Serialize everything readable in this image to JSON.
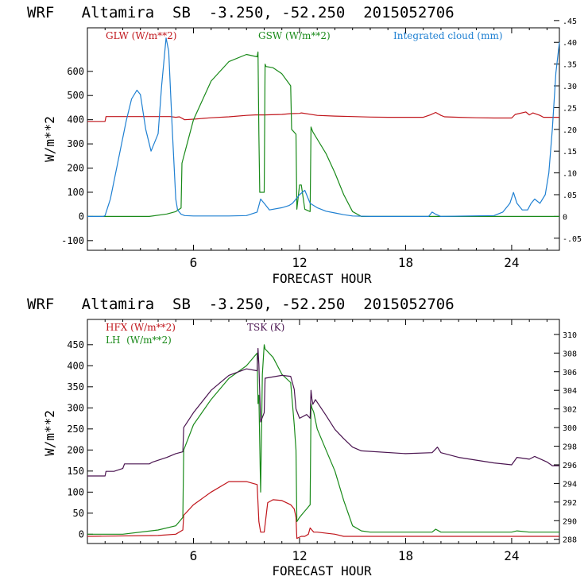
{
  "chart_data": [
    {
      "type": "line",
      "title": "WRF   Altamira  SB  -3.250, -52.250  2015052706",
      "xlabel": "FORECAST HOUR",
      "ylabel": "W/m**2",
      "xlim": [
        0,
        26.7
      ],
      "ylim": [
        -140,
        780
      ],
      "y2lim": [
        -0.0778,
        0.4333
      ],
      "x_ticks": [
        6,
        12,
        18,
        24
      ],
      "y_ticks": [
        -100,
        0,
        100,
        200,
        300,
        400,
        500,
        600
      ],
      "y2_ticks": [
        -0.05,
        0,
        0.05,
        0.1,
        0.15,
        0.2,
        0.25,
        0.3,
        0.35,
        0.4,
        0.45
      ],
      "y2_tick_labels": [
        "-.05",
        "0",
        ".05",
        ".10",
        ".15",
        ".20",
        ".25",
        ".30",
        ".35",
        ".40",
        ".45"
      ],
      "series": [
        {
          "name": "GLW (W/m**2)",
          "color": "#c0161c",
          "axis": "left",
          "x": [
            0,
            1.0,
            1.05,
            2,
            3,
            4,
            4.7,
            5,
            5.2,
            5.5,
            6,
            7,
            8,
            9,
            9.5,
            10,
            11,
            11.5,
            12,
            12.1,
            13,
            14,
            15,
            16,
            17,
            18,
            19,
            19.4,
            19.7,
            20,
            20.2,
            21,
            22,
            23,
            24,
            24.2,
            24.8,
            25,
            25.2,
            25.6,
            25.8,
            26.7
          ],
          "values": [
            393,
            393,
            413,
            413,
            413,
            413,
            413,
            410,
            412,
            400,
            402,
            408,
            412,
            418,
            420,
            420,
            422,
            425,
            426,
            428,
            418,
            415,
            413,
            411,
            410,
            410,
            410,
            420,
            430,
            418,
            412,
            410,
            408,
            407,
            407,
            422,
            432,
            420,
            428,
            418,
            410,
            410
          ]
        },
        {
          "name": "GSW (W/m**2)",
          "color": "#1a8a1a",
          "axis": "left",
          "x": [
            0,
            3.5,
            4.5,
            5.0,
            5.3,
            5.35,
            6,
            7,
            8,
            9,
            9.6,
            9.65,
            9.7,
            9.75,
            10,
            10.05,
            10.1,
            10.5,
            11,
            11.5,
            11.55,
            11.8,
            11.85,
            12,
            12.1,
            12.3,
            12.6,
            12.65,
            12.7,
            12.75,
            13,
            13.5,
            14,
            14.5,
            15,
            15.5,
            16,
            18,
            26.7
          ],
          "values": [
            0,
            0,
            10,
            20,
            35,
            220,
            400,
            560,
            640,
            670,
            660,
            680,
            340,
            100,
            100,
            630,
            620,
            615,
            590,
            540,
            360,
            340,
            30,
            130,
            130,
            30,
            20,
            370,
            360,
            350,
            320,
            260,
            180,
            90,
            20,
            0,
            0,
            0,
            0
          ]
        },
        {
          "name": "Integrated cloud (mm)",
          "color": "#1f80d2",
          "axis": "right",
          "x": [
            0,
            0.9,
            1.0,
            1.3,
            1.7,
            2.2,
            2.5,
            2.8,
            3.0,
            3.3,
            3.6,
            4.0,
            4.2,
            4.45,
            4.6,
            4.8,
            5.0,
            5.1,
            5.3,
            5.5,
            6,
            7,
            8,
            9,
            9.6,
            9.8,
            10.0,
            10.3,
            11.0,
            11.4,
            11.6,
            11.8,
            12.0,
            12.3,
            12.6,
            13.0,
            13.5,
            14.0,
            14.5,
            15,
            16,
            19.3,
            19.5,
            19.7,
            20.0,
            23.0,
            23.5,
            23.9,
            24.1,
            24.3,
            24.6,
            24.9,
            25.1,
            25.3,
            25.6,
            25.9,
            26.1,
            26.3,
            26.5,
            26.7
          ],
          "values": [
            0,
            0,
            0.002,
            0.04,
            0.12,
            0.22,
            0.27,
            0.29,
            0.28,
            0.2,
            0.15,
            0.19,
            0.3,
            0.41,
            0.38,
            0.2,
            0.04,
            0.015,
            0.005,
            0.002,
            0.001,
            0.001,
            0.001,
            0.002,
            0.01,
            0.04,
            0.03,
            0.015,
            0.02,
            0.025,
            0.03,
            0.04,
            0.05,
            0.06,
            0.03,
            0.02,
            0.012,
            0.008,
            0.004,
            0.001,
            0,
            0,
            0.01,
            0.005,
            0,
            0.002,
            0.01,
            0.03,
            0.055,
            0.03,
            0.015,
            0.015,
            0.03,
            0.04,
            0.03,
            0.05,
            0.1,
            0.2,
            0.33,
            0.4
          ]
        }
      ]
    },
    {
      "type": "line",
      "title": "WRF   Altamira  SB  -3.250, -52.250  2015052706",
      "xlabel": "FORECAST HOUR",
      "ylabel": "W/m**2",
      "xlim": [
        0,
        26.7
      ],
      "ylim": [
        -22,
        510
      ],
      "y2lim": [
        287.55,
        311.61
      ],
      "x_ticks": [
        6,
        12,
        18,
        24
      ],
      "y_ticks": [
        0,
        50,
        100,
        150,
        200,
        250,
        300,
        350,
        400,
        450
      ],
      "y2_ticks": [
        288,
        290,
        292,
        294,
        296,
        298,
        300,
        302,
        304,
        306,
        308,
        310
      ],
      "series": [
        {
          "name": "HFX (W/m**2)",
          "color": "#c0161c",
          "axis": "left",
          "x": [
            0,
            4.0,
            5.0,
            5.4,
            5.45,
            6,
            7,
            8,
            9,
            9.6,
            9.7,
            9.8,
            10.0,
            10.2,
            10.5,
            11,
            11.5,
            11.7,
            11.8,
            11.85,
            12.1,
            12.3,
            12.5,
            12.6,
            12.7,
            12.8,
            13,
            14,
            14.5,
            15,
            16,
            18,
            26.7
          ],
          "values": [
            -5,
            -3,
            0,
            10,
            45,
            70,
            100,
            125,
            125,
            118,
            30,
            5,
            5,
            75,
            82,
            80,
            70,
            60,
            40,
            -10,
            -5,
            -5,
            0,
            15,
            10,
            5,
            5,
            0,
            -5,
            -5,
            -5,
            -5,
            -5
          ]
        },
        {
          "name": "LH (W/m**2)",
          "color": "#1a8a1a",
          "axis": "left",
          "x": [
            0,
            2,
            4,
            5.0,
            5.4,
            5.45,
            6,
            7,
            8,
            9,
            9.6,
            9.65,
            9.7,
            9.8,
            9.9,
            10.0,
            10.05,
            10.5,
            11,
            11.5,
            11.7,
            11.8,
            11.85,
            12.0,
            12.2,
            12.4,
            12.6,
            12.65,
            12.7,
            12.8,
            13,
            13.5,
            14,
            14.5,
            15,
            15.5,
            16,
            19.5,
            19.7,
            20,
            24,
            24.3,
            25,
            26.7
          ],
          "values": [
            0,
            0,
            10,
            20,
            40,
            200,
            260,
            320,
            370,
            400,
            430,
            310,
            330,
            100,
            380,
            450,
            440,
            420,
            380,
            360,
            260,
            200,
            30,
            40,
            50,
            60,
            70,
            310,
            300,
            290,
            250,
            200,
            150,
            80,
            20,
            8,
            5,
            5,
            12,
            5,
            5,
            8,
            5,
            5
          ]
        },
        {
          "name": "TSK (K)",
          "color": "#4a1450",
          "axis": "right",
          "x": [
            0,
            1.0,
            1.05,
            1.5,
            2.0,
            2.1,
            3.5,
            3.7,
            4.5,
            5.0,
            5.4,
            5.45,
            6,
            7,
            8,
            9,
            9.6,
            9.65,
            9.7,
            9.8,
            10.0,
            10.05,
            11,
            11.5,
            11.7,
            11.8,
            12.0,
            12.4,
            12.6,
            12.65,
            12.7,
            12.75,
            12.9,
            13.5,
            14,
            14.5,
            15,
            15.5,
            18,
            19.5,
            19.8,
            20.0,
            21,
            22,
            23,
            24,
            24.3,
            25,
            25.3,
            26,
            26.3,
            26.7
          ],
          "values": [
            294.8,
            294.8,
            295.3,
            295.3,
            295.6,
            296.1,
            296.1,
            296.3,
            296.8,
            297.2,
            297.4,
            300.0,
            301.6,
            304.0,
            305.6,
            306.3,
            306.1,
            308.5,
            306.8,
            300.6,
            301.6,
            305.3,
            305.6,
            305.5,
            304.1,
            302.0,
            301.0,
            301.4,
            301.0,
            304.0,
            303.1,
            302.5,
            303.0,
            301.3,
            299.8,
            298.8,
            297.9,
            297.5,
            297.2,
            297.3,
            297.9,
            297.3,
            296.8,
            296.5,
            296.2,
            296.0,
            296.8,
            296.6,
            296.9,
            296.3,
            295.9,
            295.9
          ]
        }
      ]
    }
  ],
  "panels": [
    {
      "title": "WRF   Altamira  SB  -3.250, -52.250  2015052706",
      "xlabel": "FORECAST HOUR",
      "ylabel": "W/m**2",
      "legend": [
        {
          "label": "GLW (W/m**2)",
          "color": "#c0161c"
        },
        {
          "label": "GSW (W/m**2)",
          "color": "#1a8a1a"
        },
        {
          "label": "Integrated cloud (mm)",
          "color": "#1f80d2"
        }
      ],
      "x_tick_labels": [
        "6",
        "12",
        "18",
        "24"
      ],
      "y_tick_labels": [
        "-100",
        "0",
        "100",
        "200",
        "300",
        "400",
        "500",
        "600"
      ],
      "y2_tick_labels": [
        "-.05",
        "0",
        ".05",
        ".10",
        ".15",
        ".20",
        ".25",
        ".30",
        ".35",
        ".40",
        ".45"
      ]
    },
    {
      "title": "WRF   Altamira  SB  -3.250, -52.250  2015052706",
      "xlabel": "FORECAST HOUR",
      "ylabel": "W/m**2",
      "legend": [
        {
          "label": "HFX (W/m**2)",
          "color": "#c0161c"
        },
        {
          "label": "LH  (W/m**2)",
          "color": "#1a8a1a"
        },
        {
          "label": "TSK (K)",
          "color": "#4a1450"
        }
      ],
      "x_tick_labels": [
        "6",
        "12",
        "18",
        "24"
      ],
      "y_tick_labels": [
        "0",
        "50",
        "100",
        "150",
        "200",
        "250",
        "300",
        "350",
        "400",
        "450"
      ],
      "y2_tick_labels": [
        "288",
        "290",
        "292",
        "294",
        "296",
        "298",
        "300",
        "302",
        "304",
        "306",
        "308",
        "310"
      ]
    }
  ]
}
